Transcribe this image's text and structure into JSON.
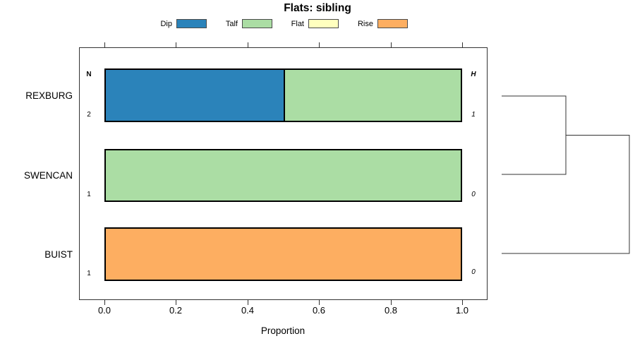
{
  "title": "Flats: sibling",
  "legend": {
    "items": [
      {
        "label": "Dip",
        "color": "#2B83BA"
      },
      {
        "label": "Talf",
        "color": "#ABDDA4"
      },
      {
        "label": "Flat",
        "color": "#FFFFBF"
      },
      {
        "label": "Rise",
        "color": "#FDAE61"
      }
    ]
  },
  "table": {
    "left_header": "N",
    "right_header": "H"
  },
  "rows": [
    {
      "name": "REXBURG",
      "n": "2",
      "h": "1",
      "segments": [
        {
          "category": "Dip",
          "proportion": 0.5
        },
        {
          "category": "Talf",
          "proportion": 0.5
        }
      ]
    },
    {
      "name": "SWENCAN",
      "n": "1",
      "h": "0",
      "segments": [
        {
          "category": "Talf",
          "proportion": 1
        }
      ]
    },
    {
      "name": "BUIST",
      "n": "1",
      "h": "0",
      "segments": [
        {
          "category": "Rise",
          "proportion": 1
        }
      ]
    }
  ],
  "x_axis": {
    "label": "Proportion",
    "ticks": [
      "0.0",
      "0.2",
      "0.4",
      "0.6",
      "0.8",
      "1.0"
    ]
  },
  "chart_data": {
    "type": "bar",
    "orientation": "horizontal",
    "stacked": true,
    "title": "Flats: sibling",
    "xlabel": "Proportion",
    "xlim": [
      0,
      1
    ],
    "xticks": [
      0.0,
      0.2,
      0.4,
      0.6,
      0.8,
      1.0
    ],
    "categories": [
      "REXBURG",
      "SWENCAN",
      "BUIST"
    ],
    "series": [
      {
        "name": "Dip",
        "color": "#2B83BA",
        "values": [
          0.5,
          0,
          0
        ]
      },
      {
        "name": "Talf",
        "color": "#ABDDA4",
        "values": [
          0.5,
          1.0,
          0
        ]
      },
      {
        "name": "Flat",
        "color": "#FFFFBF",
        "values": [
          0,
          0,
          0
        ]
      },
      {
        "name": "Rise",
        "color": "#FDAE61",
        "values": [
          0,
          0,
          1.0
        ]
      }
    ],
    "n_column": {
      "header": "N",
      "values": [
        2,
        1,
        1
      ]
    },
    "h_column": {
      "header": "H",
      "values": [
        1,
        0,
        0
      ]
    },
    "legend_position": "top",
    "grid": false,
    "dendrogram": {
      "note": "right-side cluster tree",
      "merges": [
        [
          "REXBURG",
          "SWENCAN"
        ],
        [
          [
            "REXBURG",
            "SWENCAN"
          ],
          "BUIST"
        ]
      ]
    }
  }
}
